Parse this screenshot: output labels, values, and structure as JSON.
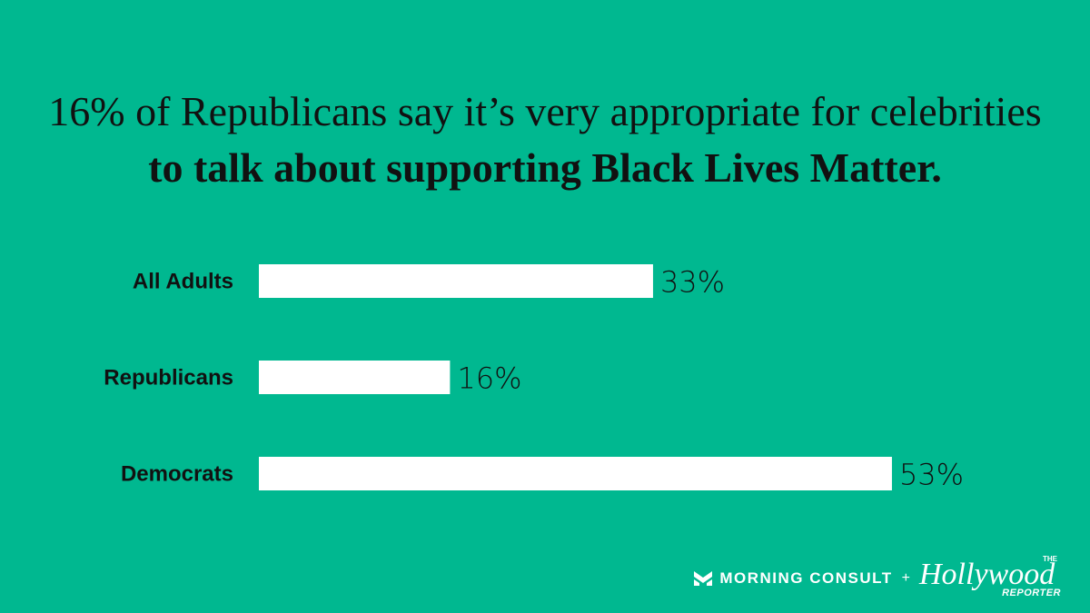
{
  "colors": {
    "background": "#00B890",
    "bar": "#FFFFFF",
    "text": "#111111"
  },
  "title": {
    "line1": "16% of Republicans say it’s very appropriate for celebrities",
    "line2": "to talk about supporting Black Lives Matter."
  },
  "chart_data": {
    "type": "bar",
    "orientation": "horizontal",
    "title": "16% of Republicans say it’s very appropriate for celebrities to talk about supporting Black Lives Matter.",
    "categories": [
      "All Adults",
      "Republicans",
      "Democrats"
    ],
    "values": [
      33,
      16,
      53
    ],
    "value_labels": [
      "33%",
      "16%",
      "53%"
    ],
    "unit": "%",
    "xlim": [
      0,
      100
    ],
    "grid": false,
    "legend": "none"
  },
  "footer": {
    "morning_consult": "MORNING CONSULT",
    "plus": "+",
    "thr_the": "THE",
    "thr_name": "Hollywood",
    "thr_reporter": "REPORTER",
    "mc_icon": "morning-consult-m-icon"
  }
}
